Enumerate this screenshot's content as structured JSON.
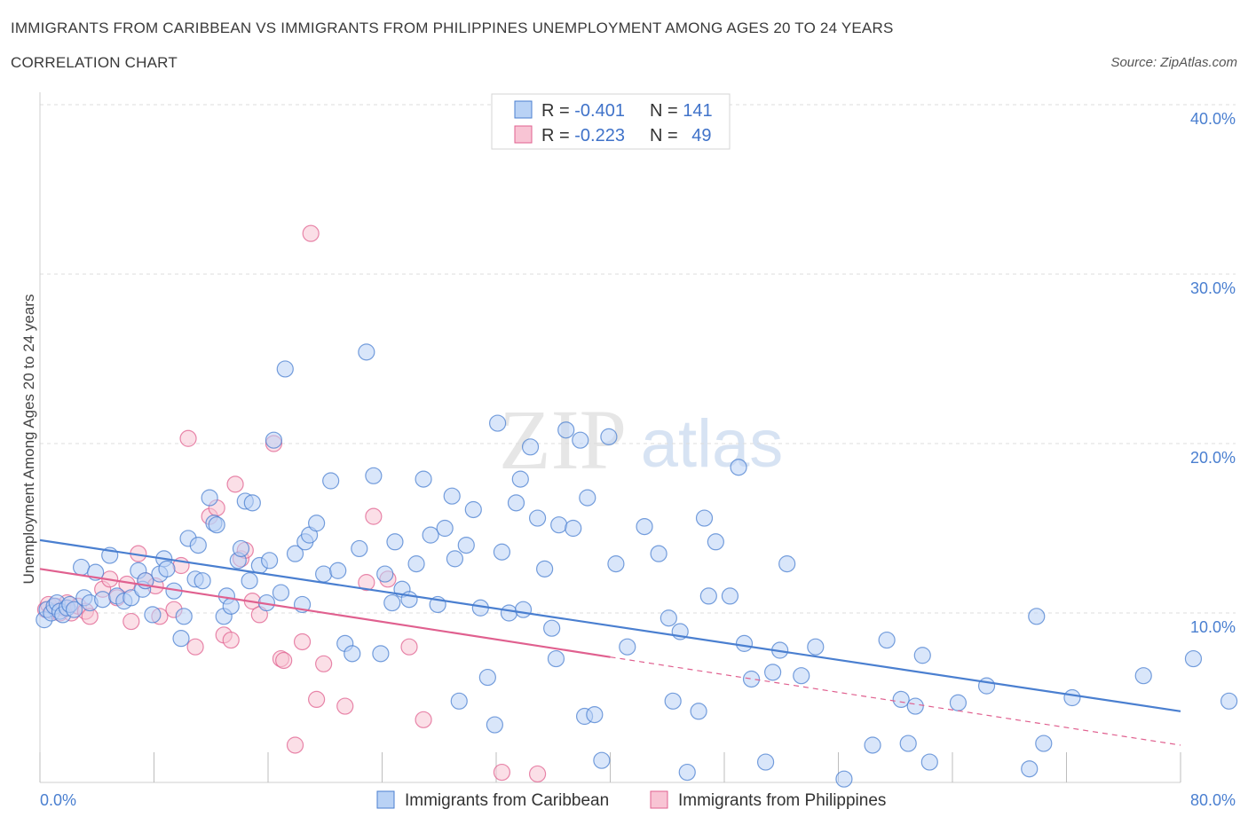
{
  "header": {
    "title": "IMMIGRANTS FROM CARIBBEAN VS IMMIGRANTS FROM PHILIPPINES UNEMPLOYMENT AMONG AGES 20 TO 24 YEARS",
    "subtitle": "CORRELATION CHART",
    "source": "Source: ZipAtlas.com"
  },
  "watermark": {
    "zip": "ZIP",
    "atlas": "atlas"
  },
  "colors": {
    "caribbean": "#4a7fd0",
    "caribbean_fill": "#b9d2f5",
    "philippines": "#e0608f",
    "philippines_fill": "#f8c4d4",
    "grid": "#dcdcdc",
    "axis_label": "#4a7fd0"
  },
  "chart_data": {
    "type": "scatter",
    "title": "IMMIGRANTS FROM CARIBBEAN VS IMMIGRANTS FROM PHILIPPINES UNEMPLOYMENT AMONG AGES 20 TO 24 YEARS",
    "xlabel": "",
    "ylabel": "Unemployment Among Ages 20 to 24 years",
    "xlim": [
      0,
      80
    ],
    "ylim": [
      0,
      40
    ],
    "x_tick_labels": [
      "0.0%",
      "80.0%"
    ],
    "y_ticks": [
      10,
      20,
      30,
      40
    ],
    "y_tick_labels": [
      "10.0%",
      "20.0%",
      "30.0%",
      "40.0%"
    ],
    "grid": true,
    "legend_position": "top-center",
    "legend_stats": [
      {
        "r_label": "R = ",
        "r_value": "-0.401",
        "n_label": "N = ",
        "n_value": "141"
      },
      {
        "r_label": "R = ",
        "r_value": "-0.223",
        "n_label": "N = ",
        "n_value": "49"
      }
    ],
    "series": [
      {
        "name": "Immigrants from Caribbean",
        "trend": {
          "x0": 0,
          "y0": 14.3,
          "x1": 80,
          "y1": 4.2
        },
        "points": [
          [
            0.3,
            9.6
          ],
          [
            0.5,
            10.2
          ],
          [
            0.8,
            10.0
          ],
          [
            1.0,
            10.4
          ],
          [
            1.2,
            10.6
          ],
          [
            1.4,
            10.1
          ],
          [
            1.6,
            9.9
          ],
          [
            1.9,
            10.3
          ],
          [
            2.1,
            10.5
          ],
          [
            2.4,
            10.2
          ],
          [
            2.9,
            12.7
          ],
          [
            3.1,
            10.9
          ],
          [
            3.5,
            10.6
          ],
          [
            3.9,
            12.4
          ],
          [
            4.4,
            10.8
          ],
          [
            4.9,
            13.4
          ],
          [
            5.4,
            11.0
          ],
          [
            5.9,
            10.7
          ],
          [
            6.4,
            10.9
          ],
          [
            6.9,
            12.5
          ],
          [
            7.2,
            11.4
          ],
          [
            7.4,
            11.9
          ],
          [
            7.9,
            9.9
          ],
          [
            8.4,
            12.3
          ],
          [
            8.7,
            13.2
          ],
          [
            8.9,
            12.6
          ],
          [
            9.4,
            11.3
          ],
          [
            9.9,
            8.5
          ],
          [
            10.1,
            9.8
          ],
          [
            10.4,
            14.4
          ],
          [
            10.9,
            12.0
          ],
          [
            11.1,
            14.0
          ],
          [
            11.4,
            11.9
          ],
          [
            11.9,
            16.8
          ],
          [
            12.2,
            15.3
          ],
          [
            12.4,
            15.2
          ],
          [
            12.9,
            9.8
          ],
          [
            13.1,
            11.0
          ],
          [
            13.4,
            10.4
          ],
          [
            13.9,
            13.1
          ],
          [
            14.1,
            13.8
          ],
          [
            14.4,
            16.6
          ],
          [
            14.7,
            11.9
          ],
          [
            14.9,
            16.5
          ],
          [
            15.4,
            12.8
          ],
          [
            15.9,
            10.6
          ],
          [
            16.1,
            13.1
          ],
          [
            16.4,
            20.2
          ],
          [
            16.9,
            11.2
          ],
          [
            17.2,
            24.4
          ],
          [
            17.9,
            13.5
          ],
          [
            18.4,
            10.5
          ],
          [
            18.6,
            14.2
          ],
          [
            18.9,
            14.6
          ],
          [
            19.4,
            15.3
          ],
          [
            19.9,
            12.3
          ],
          [
            20.4,
            17.8
          ],
          [
            20.9,
            12.5
          ],
          [
            21.4,
            8.2
          ],
          [
            21.9,
            7.6
          ],
          [
            22.4,
            13.8
          ],
          [
            22.9,
            25.4
          ],
          [
            23.4,
            18.1
          ],
          [
            23.9,
            7.6
          ],
          [
            24.2,
            12.3
          ],
          [
            24.7,
            10.6
          ],
          [
            24.9,
            14.2
          ],
          [
            25.4,
            11.4
          ],
          [
            25.9,
            10.8
          ],
          [
            26.4,
            12.9
          ],
          [
            26.9,
            17.9
          ],
          [
            27.4,
            14.6
          ],
          [
            27.9,
            10.5
          ],
          [
            28.4,
            15.0
          ],
          [
            28.9,
            16.9
          ],
          [
            29.1,
            13.2
          ],
          [
            29.4,
            4.8
          ],
          [
            29.9,
            14.0
          ],
          [
            30.4,
            16.1
          ],
          [
            30.9,
            10.3
          ],
          [
            31.4,
            6.2
          ],
          [
            31.9,
            3.4
          ],
          [
            32.1,
            21.2
          ],
          [
            32.4,
            13.6
          ],
          [
            32.9,
            10.0
          ],
          [
            33.4,
            16.5
          ],
          [
            33.7,
            17.9
          ],
          [
            33.9,
            10.2
          ],
          [
            34.4,
            19.8
          ],
          [
            34.9,
            15.6
          ],
          [
            35.4,
            12.6
          ],
          [
            35.9,
            9.1
          ],
          [
            36.2,
            7.3
          ],
          [
            36.4,
            15.2
          ],
          [
            36.9,
            20.8
          ],
          [
            37.4,
            15.0
          ],
          [
            37.9,
            20.2
          ],
          [
            38.2,
            3.9
          ],
          [
            38.4,
            16.8
          ],
          [
            39.4,
            1.3
          ],
          [
            39.9,
            20.4
          ],
          [
            40.4,
            12.9
          ],
          [
            41.2,
            8.0
          ],
          [
            42.4,
            15.1
          ],
          [
            43.4,
            13.5
          ],
          [
            44.1,
            9.7
          ],
          [
            44.4,
            4.8
          ],
          [
            44.9,
            8.9
          ],
          [
            45.4,
            0.6
          ],
          [
            46.2,
            4.2
          ],
          [
            46.6,
            15.6
          ],
          [
            46.9,
            11.0
          ],
          [
            47.4,
            14.2
          ],
          [
            48.4,
            11.0
          ],
          [
            49.0,
            18.6
          ],
          [
            49.4,
            8.2
          ],
          [
            49.9,
            6.1
          ],
          [
            50.9,
            1.2
          ],
          [
            51.4,
            6.5
          ],
          [
            51.9,
            7.8
          ],
          [
            52.4,
            12.9
          ],
          [
            53.4,
            6.3
          ],
          [
            54.4,
            8.0
          ],
          [
            56.4,
            0.2
          ],
          [
            58.4,
            2.2
          ],
          [
            59.4,
            8.4
          ],
          [
            60.4,
            4.9
          ],
          [
            60.9,
            2.3
          ],
          [
            61.4,
            4.5
          ],
          [
            61.9,
            7.5
          ],
          [
            62.4,
            1.2
          ],
          [
            64.4,
            4.7
          ],
          [
            66.4,
            5.7
          ],
          [
            69.4,
            0.8
          ],
          [
            69.9,
            9.8
          ],
          [
            70.4,
            2.3
          ],
          [
            72.4,
            5.0
          ],
          [
            77.4,
            6.3
          ],
          [
            80.9,
            7.3
          ],
          [
            83.4,
            4.8
          ],
          [
            38.9,
            4.0
          ]
        ]
      },
      {
        "name": "Immigrants from Philippines",
        "trend": {
          "x0": 0,
          "y0": 12.6,
          "x1": 40,
          "y1": 7.4
        },
        "trend_dashed_to": {
          "x": 80,
          "y": 2.2
        },
        "points": [
          [
            0.4,
            10.2
          ],
          [
            0.6,
            10.5
          ],
          [
            0.9,
            10.1
          ],
          [
            1.1,
            10.4
          ],
          [
            1.4,
            10.0
          ],
          [
            1.7,
            10.3
          ],
          [
            1.9,
            10.6
          ],
          [
            2.2,
            10.0
          ],
          [
            2.7,
            10.4
          ],
          [
            3.2,
            10.1
          ],
          [
            3.5,
            9.8
          ],
          [
            4.4,
            11.4
          ],
          [
            4.9,
            12.0
          ],
          [
            5.4,
            10.9
          ],
          [
            6.1,
            11.7
          ],
          [
            6.4,
            9.5
          ],
          [
            6.9,
            13.5
          ],
          [
            7.4,
            11.9
          ],
          [
            8.1,
            11.6
          ],
          [
            8.4,
            9.8
          ],
          [
            9.4,
            10.2
          ],
          [
            9.9,
            12.8
          ],
          [
            10.4,
            20.3
          ],
          [
            10.9,
            8.0
          ],
          [
            11.9,
            15.7
          ],
          [
            12.4,
            16.2
          ],
          [
            12.9,
            8.7
          ],
          [
            13.4,
            8.4
          ],
          [
            13.7,
            17.6
          ],
          [
            14.1,
            13.2
          ],
          [
            14.4,
            13.7
          ],
          [
            14.9,
            10.7
          ],
          [
            15.4,
            9.9
          ],
          [
            16.4,
            20.0
          ],
          [
            16.9,
            7.3
          ],
          [
            17.1,
            7.2
          ],
          [
            17.9,
            2.2
          ],
          [
            18.4,
            8.3
          ],
          [
            19.0,
            32.4
          ],
          [
            19.4,
            4.9
          ],
          [
            19.9,
            7.0
          ],
          [
            21.4,
            4.5
          ],
          [
            22.9,
            11.8
          ],
          [
            23.4,
            15.7
          ],
          [
            24.4,
            12.0
          ],
          [
            25.9,
            8.0
          ],
          [
            26.9,
            3.7
          ],
          [
            32.4,
            0.6
          ],
          [
            34.9,
            0.5
          ]
        ]
      }
    ]
  },
  "legend": {
    "items": [
      {
        "label": "Immigrants from Caribbean"
      },
      {
        "label": "Immigrants from Philippines"
      }
    ]
  }
}
